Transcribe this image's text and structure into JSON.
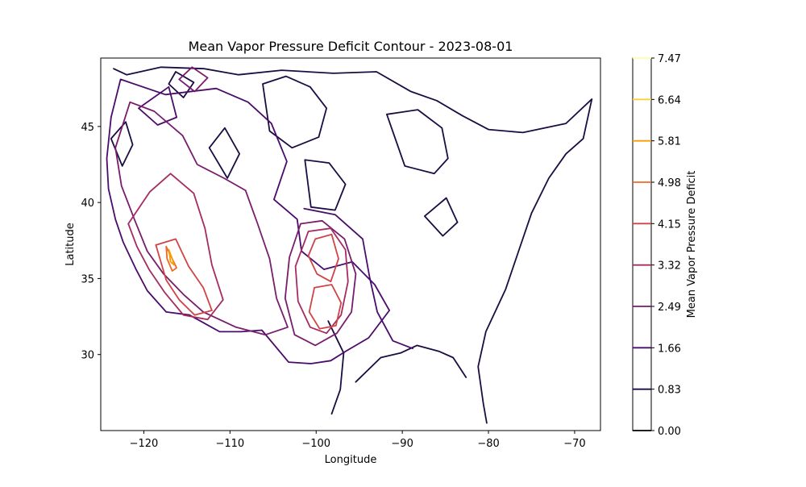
{
  "chart_data": {
    "type": "contour",
    "title": "Mean Vapor Pressure Deficit Contour - 2023-08-01",
    "xlabel": "Longitude",
    "ylabel": "Latitude",
    "xlim": [
      -125,
      -67
    ],
    "ylim": [
      25,
      49.5
    ],
    "x_ticks": [
      -120,
      -110,
      -100,
      -90,
      -80,
      -70
    ],
    "x_tick_labels": [
      "−120",
      "−110",
      "−100",
      "−90",
      "−80",
      "−70"
    ],
    "y_ticks": [
      30,
      35,
      40,
      45
    ],
    "y_tick_labels": [
      "30",
      "35",
      "40",
      "45"
    ],
    "grid": false,
    "colorbar": {
      "label": "Mean Vapor Pressure Deficit",
      "levels": [
        0.0,
        0.83,
        1.66,
        2.49,
        3.32,
        4.15,
        4.98,
        5.81,
        6.64,
        7.47
      ],
      "level_labels": [
        "0.00",
        "0.83",
        "1.66",
        "2.49",
        "3.32",
        "4.15",
        "4.98",
        "5.81",
        "6.64",
        "7.47"
      ],
      "colors": [
        "#000004",
        "#1b0c41",
        "#4a0c6b",
        "#781c6d",
        "#a52c60",
        "#cf4446",
        "#ed6925",
        "#fb9b06",
        "#f7d13d",
        "#fcffa4"
      ]
    },
    "contours": [
      {
        "level": 0.83,
        "path": [
          [
            -123.5,
            48.8
          ],
          [
            -122,
            48.4
          ],
          [
            -118,
            48.9
          ],
          [
            -113,
            48.8
          ],
          [
            -109,
            48.4
          ],
          [
            -104,
            48.7
          ],
          [
            -98,
            48.5
          ],
          [
            -93,
            48.6
          ],
          [
            -89,
            47.3
          ],
          [
            -86,
            46.7
          ],
          [
            -83,
            45.7
          ],
          [
            -80,
            44.8
          ],
          [
            -76,
            44.6
          ],
          [
            -71,
            45.2
          ],
          [
            -68,
            46.8
          ],
          [
            -69,
            44.2
          ],
          [
            -71,
            43.2
          ],
          [
            -73,
            41.6
          ],
          [
            -75,
            39.3
          ],
          [
            -76.5,
            36.8
          ],
          [
            -78,
            34.3
          ],
          [
            -80.3,
            31.5
          ],
          [
            -81.2,
            29.2
          ],
          [
            -80.6,
            26.8
          ],
          [
            -80.2,
            25.5
          ]
        ]
      },
      {
        "level": 0.83,
        "path": [
          [
            -106.2,
            47.8
          ],
          [
            -103.5,
            48.3
          ],
          [
            -100.7,
            47.6
          ],
          [
            -98.8,
            46.2
          ],
          [
            -99.7,
            44.3
          ],
          [
            -102.8,
            43.6
          ],
          [
            -105.4,
            44.7
          ],
          [
            -106.2,
            47.8
          ]
        ]
      },
      {
        "level": 0.83,
        "path": [
          [
            -91.8,
            45.8
          ],
          [
            -88.2,
            46.1
          ],
          [
            -85.4,
            44.9
          ],
          [
            -84.7,
            42.9
          ],
          [
            -86.3,
            41.9
          ],
          [
            -89.7,
            42.4
          ],
          [
            -91.8,
            45.8
          ]
        ]
      },
      {
        "level": 0.83,
        "path": [
          [
            -101.3,
            42.8
          ],
          [
            -98.5,
            42.6
          ],
          [
            -96.6,
            41.2
          ],
          [
            -97.8,
            39.5
          ],
          [
            -100.6,
            39.7
          ],
          [
            -101.3,
            42.8
          ]
        ]
      },
      {
        "level": 0.83,
        "path": [
          [
            -112.4,
            43.6
          ],
          [
            -110.6,
            44.9
          ],
          [
            -108.9,
            43.2
          ],
          [
            -110.3,
            41.6
          ],
          [
            -112.4,
            43.6
          ]
        ]
      },
      {
        "level": 0.83,
        "path": [
          [
            -87.4,
            39.1
          ],
          [
            -85.3,
            37.8
          ],
          [
            -83.6,
            38.7
          ],
          [
            -84.9,
            40.3
          ],
          [
            -87.4,
            39.1
          ]
        ]
      },
      {
        "level": 0.83,
        "path": [
          [
            -98.6,
            32.2
          ],
          [
            -96.8,
            30.1
          ],
          [
            -97.2,
            27.7
          ],
          [
            -98.2,
            26.1
          ]
        ]
      },
      {
        "level": 0.83,
        "path": [
          [
            -95.4,
            28.2
          ],
          [
            -92.5,
            29.8
          ],
          [
            -90.2,
            30.1
          ],
          [
            -88.3,
            30.6
          ],
          [
            -85.7,
            30.2
          ],
          [
            -84.1,
            29.8
          ],
          [
            -82.6,
            28.5
          ]
        ]
      },
      {
        "level": 0.83,
        "path": [
          [
            -123.8,
            44.2
          ],
          [
            -122.1,
            45.3
          ],
          [
            -121.3,
            43.8
          ],
          [
            -122.5,
            42.4
          ],
          [
            -123.8,
            44.2
          ]
        ]
      },
      {
        "level": 0.83,
        "path": [
          [
            -117.1,
            47.8
          ],
          [
            -115.4,
            46.9
          ],
          [
            -114.2,
            47.9
          ],
          [
            -116.3,
            48.6
          ],
          [
            -117.1,
            47.8
          ]
        ]
      },
      {
        "level": 1.66,
        "path": [
          [
            -122.7,
            48.1
          ],
          [
            -117.5,
            47.1
          ],
          [
            -111.6,
            47.5
          ],
          [
            -107.9,
            46.6
          ],
          [
            -105.2,
            45.2
          ],
          [
            -103.4,
            42.7
          ],
          [
            -104.9,
            40.2
          ],
          [
            -102.2,
            38.9
          ],
          [
            -101.7,
            36.8
          ],
          [
            -99.1,
            35.6
          ],
          [
            -95.8,
            36.1
          ],
          [
            -93.2,
            34.6
          ],
          [
            -91.5,
            32.9
          ],
          [
            -93.9,
            31.1
          ],
          [
            -96.6,
            30.2
          ],
          [
            -98.3,
            29.6
          ],
          [
            -100.6,
            29.4
          ],
          [
            -103.2,
            29.5
          ],
          [
            -106.3,
            31.6
          ],
          [
            -108.7,
            31.5
          ],
          [
            -111.2,
            31.5
          ],
          [
            -114.7,
            32.6
          ],
          [
            -117.4,
            32.8
          ],
          [
            -119.6,
            34.2
          ],
          [
            -120.9,
            35.6
          ],
          [
            -122.4,
            37.4
          ],
          [
            -123.3,
            38.9
          ],
          [
            -124.1,
            40.9
          ],
          [
            -124.3,
            42.9
          ],
          [
            -123.8,
            45.6
          ],
          [
            -122.7,
            48.1
          ]
        ]
      },
      {
        "level": 1.66,
        "path": [
          [
            -101.4,
            39.6
          ],
          [
            -97.8,
            39.2
          ],
          [
            -94.6,
            37.6
          ],
          [
            -93.8,
            35.1
          ],
          [
            -92.9,
            32.8
          ],
          [
            -91.1,
            30.9
          ],
          [
            -88.8,
            30.4
          ]
        ]
      },
      {
        "level": 1.66,
        "path": [
          [
            -120.6,
            46.2
          ],
          [
            -118.4,
            45.1
          ],
          [
            -116.2,
            45.6
          ],
          [
            -117.1,
            47.6
          ],
          [
            -120.6,
            46.2
          ]
        ]
      },
      {
        "level": 2.49,
        "path": [
          [
            -121.6,
            46.6
          ],
          [
            -118.8,
            46.0
          ],
          [
            -115.5,
            44.4
          ],
          [
            -113.8,
            42.5
          ],
          [
            -110.7,
            41.6
          ],
          [
            -108.2,
            40.8
          ],
          [
            -106.8,
            38.6
          ],
          [
            -105.4,
            36.3
          ],
          [
            -104.6,
            33.7
          ],
          [
            -103.3,
            31.8
          ],
          [
            -105.9,
            31.3
          ],
          [
            -109.3,
            31.8
          ],
          [
            -113.1,
            32.8
          ],
          [
            -115.3,
            33.9
          ],
          [
            -117.7,
            35.3
          ],
          [
            -119.6,
            36.8
          ],
          [
            -121.1,
            38.9
          ],
          [
            -122.6,
            41.1
          ],
          [
            -123.3,
            43.6
          ],
          [
            -121.6,
            46.6
          ]
        ]
      },
      {
        "level": 2.49,
        "path": [
          [
            -101.8,
            38.6
          ],
          [
            -99.3,
            38.8
          ],
          [
            -96.7,
            37.6
          ],
          [
            -95.4,
            35.3
          ],
          [
            -95.9,
            32.8
          ],
          [
            -97.6,
            31.4
          ],
          [
            -100.1,
            30.6
          ],
          [
            -102.5,
            31.3
          ],
          [
            -103.6,
            33.7
          ],
          [
            -103.1,
            36.4
          ],
          [
            -101.8,
            38.6
          ]
        ]
      },
      {
        "level": 2.49,
        "path": [
          [
            -115.9,
            48.1
          ],
          [
            -114.1,
            47.3
          ],
          [
            -112.6,
            48.2
          ],
          [
            -114.4,
            48.9
          ],
          [
            -115.9,
            48.1
          ]
        ]
      },
      {
        "level": 3.32,
        "path": [
          [
            -121.8,
            38.6
          ],
          [
            -119.3,
            40.7
          ],
          [
            -116.9,
            41.9
          ],
          [
            -114.2,
            40.6
          ],
          [
            -112.9,
            38.3
          ],
          [
            -112.1,
            35.9
          ],
          [
            -110.8,
            33.6
          ],
          [
            -112.6,
            32.3
          ],
          [
            -115.4,
            32.6
          ],
          [
            -117.6,
            34.1
          ],
          [
            -119.4,
            35.6
          ],
          [
            -120.8,
            37.1
          ],
          [
            -121.8,
            38.6
          ]
        ]
      },
      {
        "level": 3.32,
        "path": [
          [
            -100.9,
            38.1
          ],
          [
            -98.3,
            38.3
          ],
          [
            -96.6,
            36.9
          ],
          [
            -96.3,
            34.8
          ],
          [
            -97.1,
            32.6
          ],
          [
            -98.8,
            31.4
          ],
          [
            -100.7,
            31.8
          ],
          [
            -102.1,
            33.5
          ],
          [
            -102.4,
            35.8
          ],
          [
            -100.9,
            38.1
          ]
        ]
      },
      {
        "level": 4.15,
        "path": [
          [
            -100.1,
            37.6
          ],
          [
            -98.2,
            37.9
          ],
          [
            -97.4,
            36.3
          ],
          [
            -98.3,
            34.8
          ],
          [
            -99.9,
            35.3
          ],
          [
            -100.9,
            36.5
          ],
          [
            -100.1,
            37.6
          ]
        ]
      },
      {
        "level": 4.15,
        "path": [
          [
            -100.2,
            34.4
          ],
          [
            -98.2,
            34.6
          ],
          [
            -97.1,
            33.4
          ],
          [
            -97.7,
            31.9
          ],
          [
            -99.6,
            31.7
          ],
          [
            -100.8,
            32.8
          ],
          [
            -100.2,
            34.4
          ]
        ]
      },
      {
        "level": 4.15,
        "path": [
          [
            -118.6,
            37.2
          ],
          [
            -116.3,
            37.6
          ],
          [
            -114.8,
            35.8
          ],
          [
            -113.1,
            34.4
          ],
          [
            -112.1,
            32.9
          ],
          [
            -114.1,
            32.6
          ],
          [
            -115.9,
            33.6
          ],
          [
            -117.4,
            34.9
          ],
          [
            -118.6,
            37.2
          ]
        ]
      },
      {
        "level": 4.98,
        "path": [
          [
            -117.4,
            37.1
          ],
          [
            -116.8,
            36.4
          ],
          [
            -116.2,
            35.7
          ],
          [
            -116.7,
            35.5
          ],
          [
            -117.3,
            36.3
          ],
          [
            -117.4,
            37.1
          ]
        ]
      },
      {
        "level": 5.81,
        "path": [
          [
            -117.1,
            36.9
          ],
          [
            -116.7,
            36.3
          ],
          [
            -116.5,
            35.9
          ],
          [
            -116.9,
            36.1
          ],
          [
            -117.1,
            36.9
          ]
        ]
      }
    ]
  }
}
